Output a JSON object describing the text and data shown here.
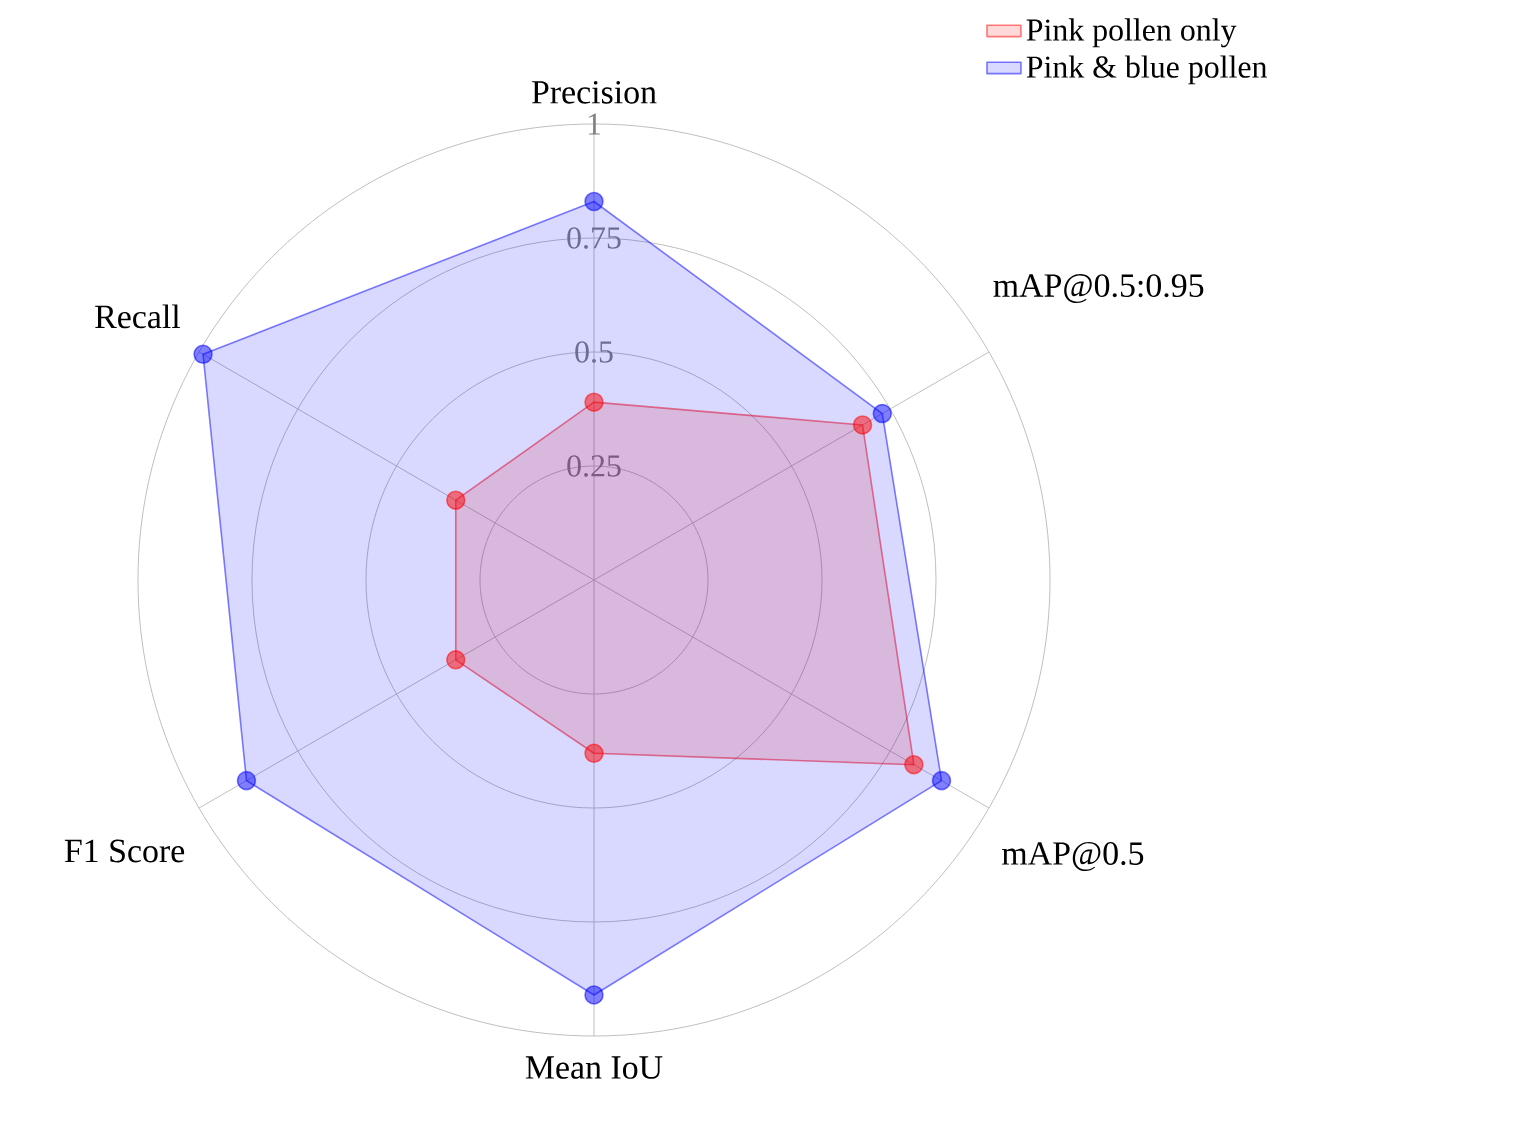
{
  "chart_data": {
    "type": "radar",
    "categories": [
      "Precision",
      "mAP@0.5:0.95",
      "mAP@0.5",
      "Mean IoU",
      "F1 Score",
      "Recall"
    ],
    "series": [
      {
        "name": "Pink pollen only",
        "color": "#ff0000",
        "values": [
          0.39,
          0.68,
          0.81,
          0.38,
          0.35,
          0.35
        ]
      },
      {
        "name": "Pink & blue pollen",
        "color": "#0000ff",
        "values": [
          0.83,
          0.73,
          0.88,
          0.91,
          0.88,
          0.99
        ]
      }
    ],
    "ylim": [
      0,
      1
    ],
    "yticks": [
      0.25,
      0.5,
      0.75,
      1
    ],
    "grid": true,
    "legend": "top right",
    "marker": "circle"
  }
}
